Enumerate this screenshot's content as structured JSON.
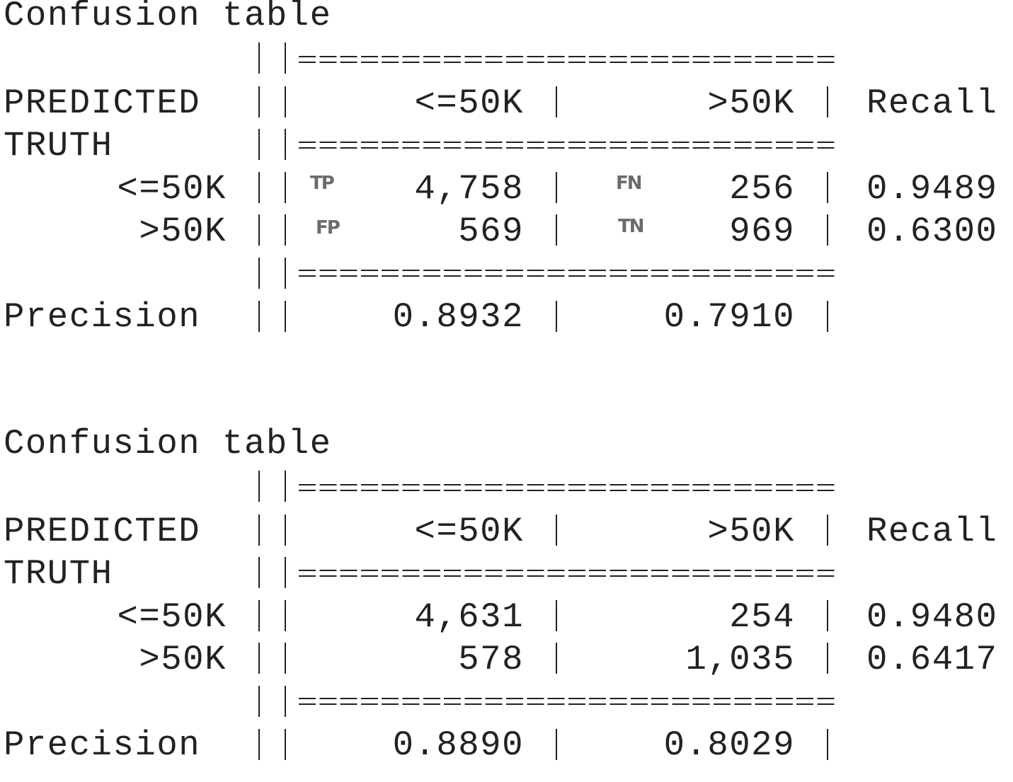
{
  "tables": [
    {
      "title": "Confusion table",
      "header_label": "PREDICTED",
      "truth_label": "TRUTH",
      "columns": [
        "<=50K",
        ">50K",
        "Recall"
      ],
      "rows": [
        {
          "label": "<=50K",
          "values": [
            "4,758",
            "256"
          ],
          "recall": "0.9489",
          "tags": [
            "TP",
            "FN"
          ]
        },
        {
          "label": ">50K",
          "values": [
            "569",
            "969"
          ],
          "recall": "0.6300",
          "tags": [
            "FP",
            "TN"
          ]
        }
      ],
      "precision_label": "Precision",
      "precision": [
        "0.8932",
        "0.7910"
      ]
    },
    {
      "title": "Confusion table",
      "header_label": "PREDICTED",
      "truth_label": "TRUTH",
      "columns": [
        "<=50K",
        ">50K",
        "Recall"
      ],
      "rows": [
        {
          "label": "<=50K",
          "values": [
            "4,631",
            "254"
          ],
          "recall": "0.9480"
        },
        {
          "label": ">50K",
          "values": [
            "578",
            "1,035"
          ],
          "recall": "0.6417"
        }
      ],
      "precision_label": "Precision",
      "precision": [
        "0.8890",
        "0.8029"
      ]
    }
  ]
}
